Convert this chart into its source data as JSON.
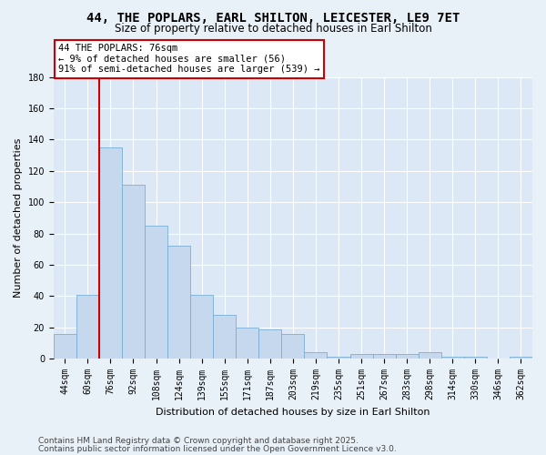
{
  "title": "44, THE POPLARS, EARL SHILTON, LEICESTER, LE9 7ET",
  "subtitle": "Size of property relative to detached houses in Earl Shilton",
  "xlabel": "Distribution of detached houses by size in Earl Shilton",
  "ylabel": "Number of detached properties",
  "categories": [
    "44sqm",
    "60sqm",
    "76sqm",
    "92sqm",
    "108sqm",
    "124sqm",
    "139sqm",
    "155sqm",
    "171sqm",
    "187sqm",
    "203sqm",
    "219sqm",
    "235sqm",
    "251sqm",
    "267sqm",
    "283sqm",
    "298sqm",
    "314sqm",
    "330sqm",
    "346sqm",
    "362sqm"
  ],
  "values": [
    16,
    41,
    135,
    111,
    85,
    72,
    41,
    28,
    20,
    19,
    16,
    4,
    1,
    3,
    3,
    3,
    4,
    1,
    1,
    0,
    1
  ],
  "bar_color": "#c5d8ee",
  "bar_edge_color": "#7aafd4",
  "highlight_index": 2,
  "annotation_line1": "44 THE POPLARS: 76sqm",
  "annotation_line2": "← 9% of detached houses are smaller (56)",
  "annotation_line3": "91% of semi-detached houses are larger (539) →",
  "annotation_box_color": "#ffffff",
  "annotation_box_edge_color": "#cc0000",
  "redline_color": "#cc0000",
  "ylim": [
    0,
    180
  ],
  "yticks": [
    0,
    20,
    40,
    60,
    80,
    100,
    120,
    140,
    160,
    180
  ],
  "footnote_line1": "Contains HM Land Registry data © Crown copyright and database right 2025.",
  "footnote_line2": "Contains public sector information licensed under the Open Government Licence v3.0.",
  "bg_color": "#e8f0f8",
  "plot_bg_color": "#dce8f5",
  "grid_color": "#ffffff",
  "title_fontsize": 10,
  "subtitle_fontsize": 8.5,
  "tick_fontsize": 7,
  "label_fontsize": 8,
  "annotation_fontsize": 7.5,
  "footnote_fontsize": 6.5
}
